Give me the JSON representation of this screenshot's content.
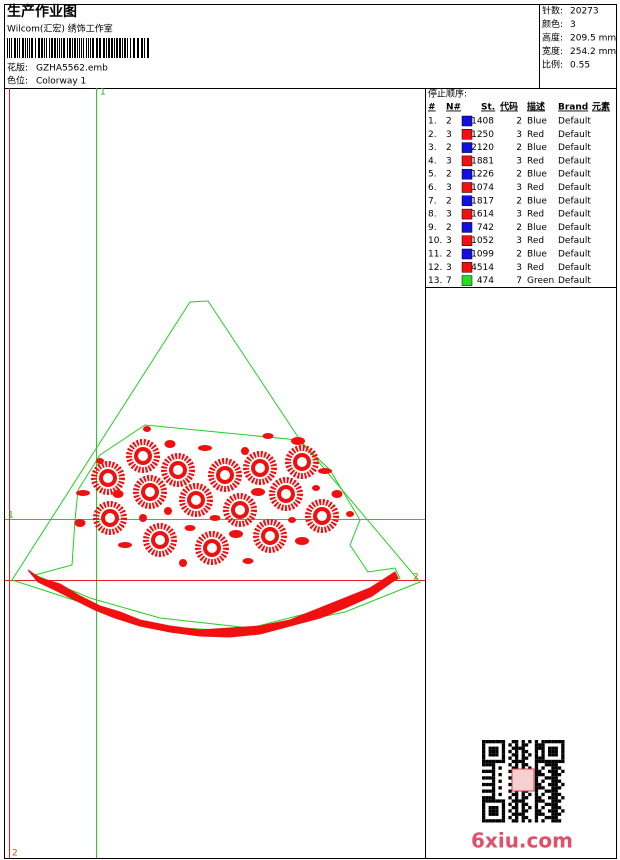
{
  "header": {
    "title": "生产作业图",
    "subtitle": "Wilcom(汇宏) 绣饰工作室",
    "design_label": "花版:",
    "design": "GZHA5562.emb",
    "colorway_label": "色位:",
    "colorway": "Colorway 1"
  },
  "stats": [
    {
      "label": "针数:",
      "value": "20273"
    },
    {
      "label": "颜色:",
      "value": "3"
    },
    {
      "label": "高度:",
      "value": "209.5 mm"
    },
    {
      "label": "宽度:",
      "value": "254.2 mm"
    },
    {
      "label": "比例:",
      "value": "0.55"
    }
  ],
  "stop_sequence": {
    "title": "停止顺序:",
    "columns": [
      "#",
      "N#",
      "St.",
      "代码",
      "描述",
      "Brand",
      "元素"
    ],
    "rows": [
      {
        "no": "1.",
        "n": "2",
        "color": "#1010e0",
        "st": "1408",
        "code": "2",
        "desc": "Blue",
        "brand": "Default"
      },
      {
        "no": "2.",
        "n": "3",
        "color": "#f01010",
        "st": "1250",
        "code": "3",
        "desc": "Red",
        "brand": "Default"
      },
      {
        "no": "3.",
        "n": "2",
        "color": "#1010e0",
        "st": "2120",
        "code": "2",
        "desc": "Blue",
        "brand": "Default"
      },
      {
        "no": "4.",
        "n": "3",
        "color": "#f01010",
        "st": "1881",
        "code": "3",
        "desc": "Red",
        "brand": "Default"
      },
      {
        "no": "5.",
        "n": "2",
        "color": "#1010e0",
        "st": "1226",
        "code": "2",
        "desc": "Blue",
        "brand": "Default"
      },
      {
        "no": "6.",
        "n": "3",
        "color": "#f01010",
        "st": "1074",
        "code": "3",
        "desc": "Red",
        "brand": "Default"
      },
      {
        "no": "7.",
        "n": "2",
        "color": "#1010e0",
        "st": "1817",
        "code": "2",
        "desc": "Blue",
        "brand": "Default"
      },
      {
        "no": "8.",
        "n": "3",
        "color": "#f01010",
        "st": "1614",
        "code": "3",
        "desc": "Red",
        "brand": "Default"
      },
      {
        "no": "9.",
        "n": "2",
        "color": "#1010e0",
        "st": "742",
        "code": "2",
        "desc": "Blue",
        "brand": "Default"
      },
      {
        "no": "10.",
        "n": "3",
        "color": "#f01010",
        "st": "1052",
        "code": "3",
        "desc": "Red",
        "brand": "Default"
      },
      {
        "no": "11.",
        "n": "2",
        "color": "#1010e0",
        "st": "1099",
        "code": "2",
        "desc": "Blue",
        "brand": "Default"
      },
      {
        "no": "12.",
        "n": "3",
        "color": "#f01010",
        "st": "4514",
        "code": "3",
        "desc": "Red",
        "brand": "Default"
      },
      {
        "no": "13.",
        "n": "7",
        "color": "#20e020",
        "st": "474",
        "code": "7",
        "desc": "Green",
        "brand": "Default"
      }
    ]
  },
  "axis_labels": {
    "top": "1",
    "left": "1",
    "right": "2",
    "bottom": "2"
  },
  "watermark": "6xiu.com"
}
